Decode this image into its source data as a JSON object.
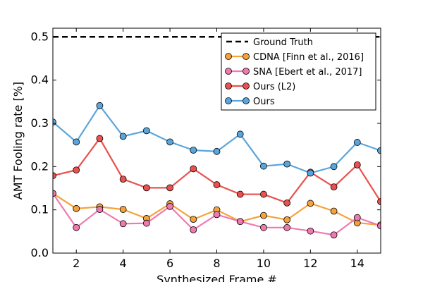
{
  "chart_data": {
    "type": "line",
    "title": "",
    "xlabel": "Synthesized Frame #",
    "ylabel": "AMT Fooling rate [%]",
    "xlim": [
      1,
      15
    ],
    "ylim": [
      0,
      0.52
    ],
    "x_ticks": [
      2,
      4,
      6,
      8,
      10,
      12,
      14
    ],
    "y_ticks": [
      0.0,
      0.1,
      0.2,
      0.3,
      0.4,
      0.5
    ],
    "y_tick_labels": [
      "0.0",
      "0.1",
      "0.2",
      "0.3",
      "0.4",
      "0.5"
    ],
    "grid": false,
    "legend_position": "top-right",
    "x": [
      1,
      2,
      3,
      4,
      5,
      6,
      7,
      8,
      9,
      10,
      11,
      12,
      13,
      14,
      15
    ],
    "ground_truth": {
      "name": "Ground Truth",
      "value": 0.5,
      "color": "#000000"
    },
    "series": [
      {
        "name": "CDNA [Finn et al., 2016]",
        "color": "#f5a23a",
        "values": [
          0.138,
          0.103,
          0.107,
          0.101,
          0.08,
          0.114,
          0.078,
          0.1,
          0.073,
          0.087,
          0.077,
          0.115,
          0.097,
          0.07,
          0.065
        ]
      },
      {
        "name": "SNA [Ebert et al., 2017]",
        "color": "#f07ab0",
        "values": [
          0.138,
          0.059,
          0.101,
          0.068,
          0.069,
          0.108,
          0.054,
          0.089,
          0.073,
          0.059,
          0.059,
          0.051,
          0.042,
          0.082,
          0.063
        ]
      },
      {
        "name": "Ours (L2)",
        "color": "#e8514f",
        "values": [
          0.179,
          0.192,
          0.265,
          0.171,
          0.151,
          0.151,
          0.195,
          0.158,
          0.136,
          0.136,
          0.116,
          0.187,
          0.153,
          0.204,
          0.119
        ]
      },
      {
        "name": "Ours",
        "color": "#5aa6dc",
        "values": [
          0.303,
          0.257,
          0.341,
          0.27,
          0.283,
          0.257,
          0.238,
          0.235,
          0.275,
          0.201,
          0.206,
          0.185,
          0.2,
          0.256,
          0.237
        ]
      }
    ]
  }
}
